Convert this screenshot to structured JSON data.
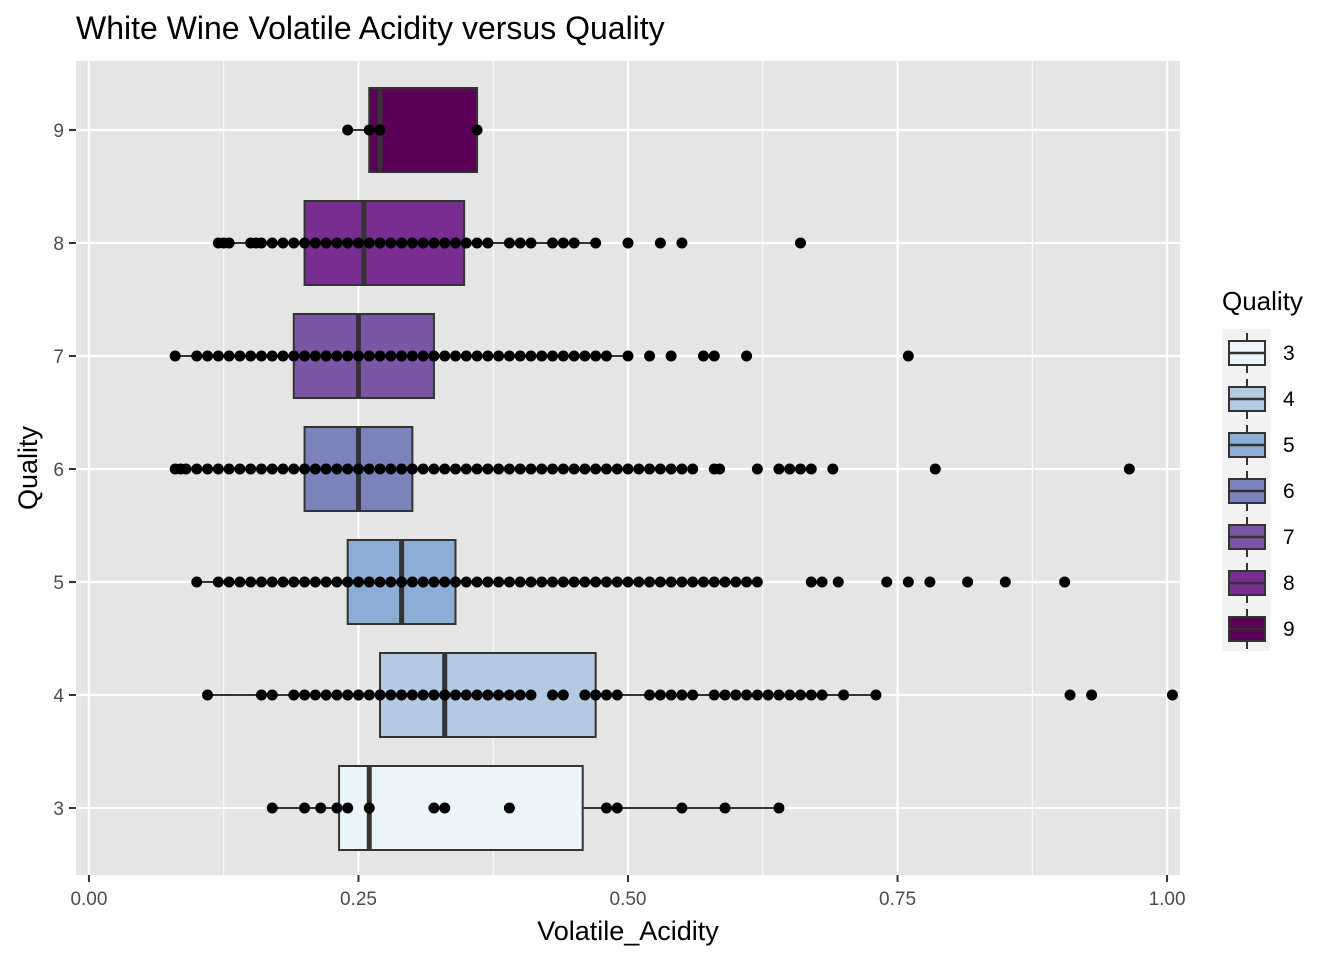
{
  "chart_data": {
    "type": "boxplot",
    "title": "White Wine Volatile Acidity versus Quality",
    "xlabel": "Volatile_Acidity",
    "ylabel": "Quality",
    "xlim": [
      -0.012,
      1.012
    ],
    "x_ticks": [
      0.0,
      0.25,
      0.5,
      0.75,
      1.0
    ],
    "x_tick_labels": [
      "0.00",
      "0.25",
      "0.50",
      "0.75",
      "1.00"
    ],
    "categories": [
      "3",
      "4",
      "5",
      "6",
      "7",
      "8",
      "9"
    ],
    "grid": true,
    "legend": {
      "title": "Quality",
      "position": "right",
      "labels": [
        "3",
        "4",
        "5",
        "6",
        "7",
        "8",
        "9"
      ]
    },
    "colors": {
      "panel_bg": "#e5e5e5",
      "grid": "#ffffff",
      "box_stroke": "#333333",
      "point": "#000000",
      "legend_bg": "#f2f2f2"
    },
    "boxes": [
      {
        "category": "3",
        "whisker_low": 0.17,
        "q1": 0.232,
        "median": 0.26,
        "q3": 0.458,
        "whisker_high": 0.64,
        "fill": "#edf8fb",
        "points": [
          0.17,
          0.2,
          0.215,
          0.23,
          0.24,
          0.26,
          0.32,
          0.33,
          0.39,
          0.48,
          0.49,
          0.55,
          0.59,
          0.64
        ]
      },
      {
        "category": "4",
        "whisker_low": 0.11,
        "q1": 0.27,
        "median": 0.33,
        "q3": 0.47,
        "whisker_high": 0.73,
        "fill": "#b3cde3",
        "points": [
          0.11,
          0.16,
          0.17,
          0.19,
          0.2,
          0.21,
          0.22,
          0.23,
          0.24,
          0.25,
          0.26,
          0.27,
          0.28,
          0.29,
          0.3,
          0.31,
          0.32,
          0.33,
          0.34,
          0.35,
          0.36,
          0.37,
          0.38,
          0.39,
          0.4,
          0.41,
          0.43,
          0.44,
          0.46,
          0.47,
          0.48,
          0.49,
          0.52,
          0.53,
          0.54,
          0.55,
          0.56,
          0.58,
          0.59,
          0.6,
          0.61,
          0.62,
          0.63,
          0.64,
          0.65,
          0.66,
          0.67,
          0.68,
          0.7,
          0.73,
          0.91,
          0.93,
          1.005
        ]
      },
      {
        "category": "5",
        "whisker_low": 0.1,
        "q1": 0.24,
        "median": 0.29,
        "q3": 0.34,
        "whisker_high": 0.62,
        "fill": "#8c96c6",
        "points": [
          0.1,
          0.12,
          0.13,
          0.14,
          0.15,
          0.16,
          0.17,
          0.18,
          0.19,
          0.2,
          0.21,
          0.22,
          0.23,
          0.24,
          0.25,
          0.26,
          0.27,
          0.28,
          0.29,
          0.3,
          0.31,
          0.32,
          0.33,
          0.34,
          0.35,
          0.36,
          0.37,
          0.38,
          0.39,
          0.4,
          0.41,
          0.42,
          0.43,
          0.44,
          0.45,
          0.46,
          0.47,
          0.48,
          0.49,
          0.5,
          0.51,
          0.52,
          0.53,
          0.54,
          0.55,
          0.56,
          0.57,
          0.58,
          0.59,
          0.6,
          0.61,
          0.62,
          0.67,
          0.68,
          0.695,
          0.74,
          0.76,
          0.78,
          0.815,
          0.85,
          0.905
        ]
      },
      {
        "category": "6",
        "whisker_low": 0.08,
        "q1": 0.2,
        "median": 0.25,
        "q3": 0.3,
        "whisker_high": 0.45,
        "fill": "#8c6bb1",
        "points": [
          0.08,
          0.085,
          0.09,
          0.1,
          0.11,
          0.12,
          0.13,
          0.14,
          0.15,
          0.16,
          0.17,
          0.18,
          0.19,
          0.2,
          0.21,
          0.22,
          0.23,
          0.24,
          0.25,
          0.26,
          0.27,
          0.28,
          0.29,
          0.3,
          0.31,
          0.32,
          0.33,
          0.34,
          0.35,
          0.36,
          0.37,
          0.38,
          0.39,
          0.4,
          0.41,
          0.42,
          0.43,
          0.44,
          0.45,
          0.46,
          0.47,
          0.48,
          0.49,
          0.5,
          0.51,
          0.52,
          0.53,
          0.54,
          0.55,
          0.56,
          0.58,
          0.585,
          0.62,
          0.64,
          0.65,
          0.66,
          0.67,
          0.69,
          0.785,
          0.965
        ]
      },
      {
        "category": "7",
        "whisker_low": 0.08,
        "q1": 0.19,
        "median": 0.25,
        "q3": 0.32,
        "whisker_high": 0.5,
        "fill": "#88419d",
        "points": [
          0.08,
          0.1,
          0.11,
          0.12,
          0.13,
          0.14,
          0.15,
          0.16,
          0.17,
          0.18,
          0.19,
          0.2,
          0.21,
          0.22,
          0.23,
          0.24,
          0.25,
          0.26,
          0.27,
          0.28,
          0.29,
          0.3,
          0.31,
          0.32,
          0.33,
          0.34,
          0.35,
          0.36,
          0.37,
          0.38,
          0.39,
          0.4,
          0.41,
          0.42,
          0.43,
          0.44,
          0.45,
          0.46,
          0.47,
          0.48,
          0.5,
          0.52,
          0.54,
          0.57,
          0.58,
          0.61,
          0.76
        ]
      },
      {
        "category": "8",
        "whisker_low": 0.12,
        "q1": 0.2,
        "median": 0.255,
        "q3": 0.348,
        "whisker_high": 0.47,
        "fill": "#810f7c",
        "points": [
          0.12,
          0.125,
          0.13,
          0.15,
          0.155,
          0.16,
          0.17,
          0.18,
          0.19,
          0.2,
          0.21,
          0.22,
          0.23,
          0.24,
          0.25,
          0.26,
          0.27,
          0.28,
          0.29,
          0.3,
          0.31,
          0.32,
          0.33,
          0.34,
          0.35,
          0.36,
          0.37,
          0.39,
          0.4,
          0.41,
          0.43,
          0.44,
          0.45,
          0.47,
          0.5,
          0.53,
          0.55,
          0.66
        ]
      },
      {
        "category": "9",
        "whisker_low": 0.24,
        "q1": 0.26,
        "median": 0.27,
        "q3": 0.36,
        "whisker_high": 0.36,
        "fill": "#4d004b",
        "points": [
          0.24,
          0.26,
          0.27,
          0.36
        ]
      }
    ],
    "box_fill_display": [
      "#eaf5fa",
      "#b3cae2",
      "#8cadd6",
      "#7c82bc",
      "#7b56a6",
      "#782d90",
      "#5a0056"
    ]
  }
}
